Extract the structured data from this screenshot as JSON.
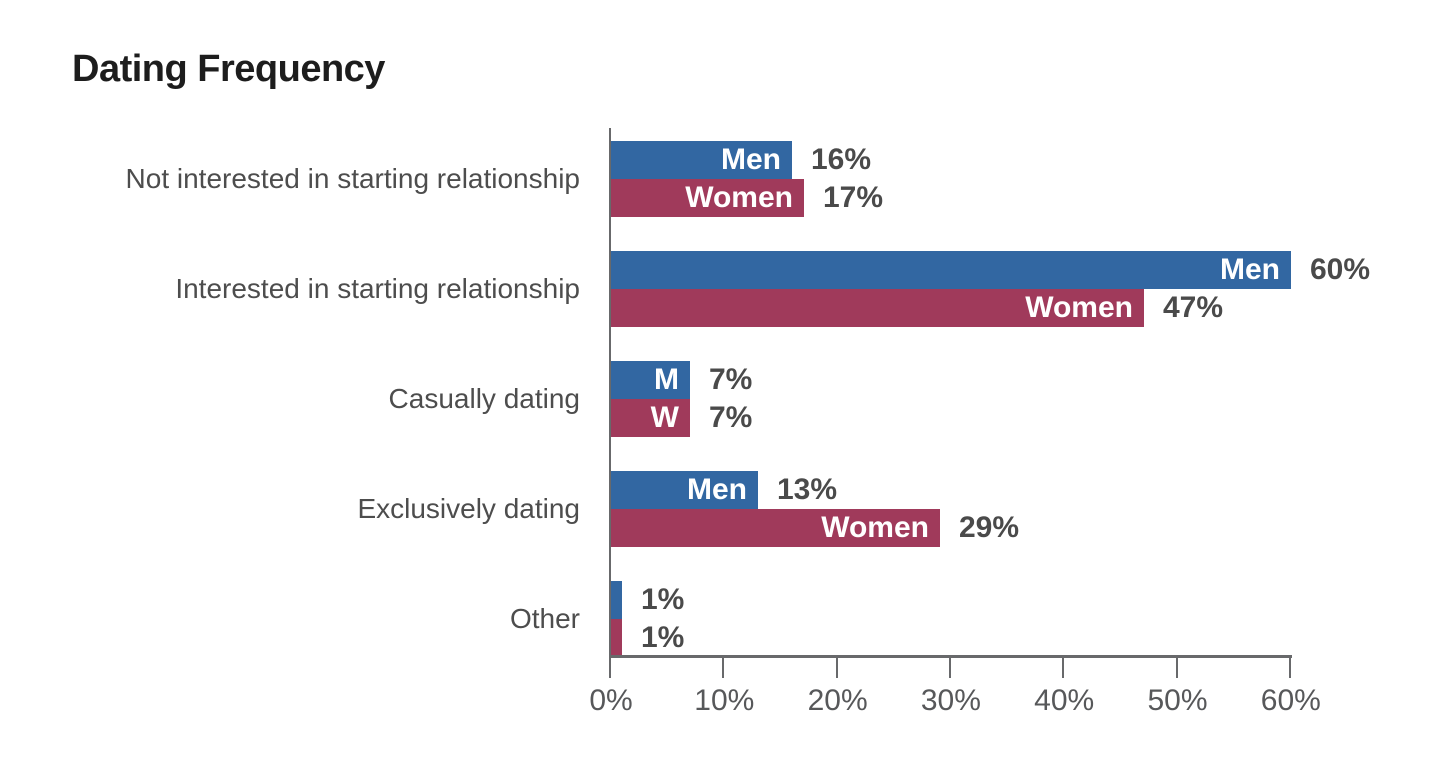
{
  "title": "Dating Frequency",
  "chart_data": {
    "type": "bar",
    "orientation": "horizontal",
    "title": "Dating Frequency",
    "categories": [
      "Not interested in starting relationship",
      "Interested in starting relationship",
      "Casually dating",
      "Exclusively dating",
      "Other"
    ],
    "series": [
      {
        "name": "Men",
        "color": "#3267a2",
        "values": [
          16,
          60,
          7,
          13,
          1
        ],
        "bar_labels": [
          "Men",
          "Men",
          "M",
          "Men",
          ""
        ]
      },
      {
        "name": "Women",
        "color": "#a03a5b",
        "values": [
          17,
          47,
          7,
          29,
          1
        ],
        "bar_labels": [
          "Women",
          "Women",
          "W",
          "Women",
          ""
        ]
      }
    ],
    "value_suffix": "%",
    "value_labels": [
      [
        "16%",
        "60%",
        "7%",
        "13%",
        "1%"
      ],
      [
        "17%",
        "47%",
        "7%",
        "29%",
        "1%"
      ]
    ],
    "xlabel": "",
    "ylabel": "",
    "xlim": [
      0,
      60
    ],
    "x_ticks": [
      "0%",
      "10%",
      "20%",
      "30%",
      "40%",
      "50%",
      "60%"
    ],
    "x_tick_values": [
      0,
      10,
      20,
      30,
      40,
      50,
      60
    ],
    "grid": false,
    "legend_position": "labels-inside-bars"
  },
  "colors": {
    "background": "#ffffff",
    "men_bar": "#3267a2",
    "women_bar": "#a03a5b",
    "title_text": "#1d1d1d",
    "category_text": "#4d4d4d",
    "value_text": "#4a4a4a",
    "axis_line": "#68696b",
    "tick_text": "#57585a",
    "in_bar_text": "#ffffff"
  }
}
